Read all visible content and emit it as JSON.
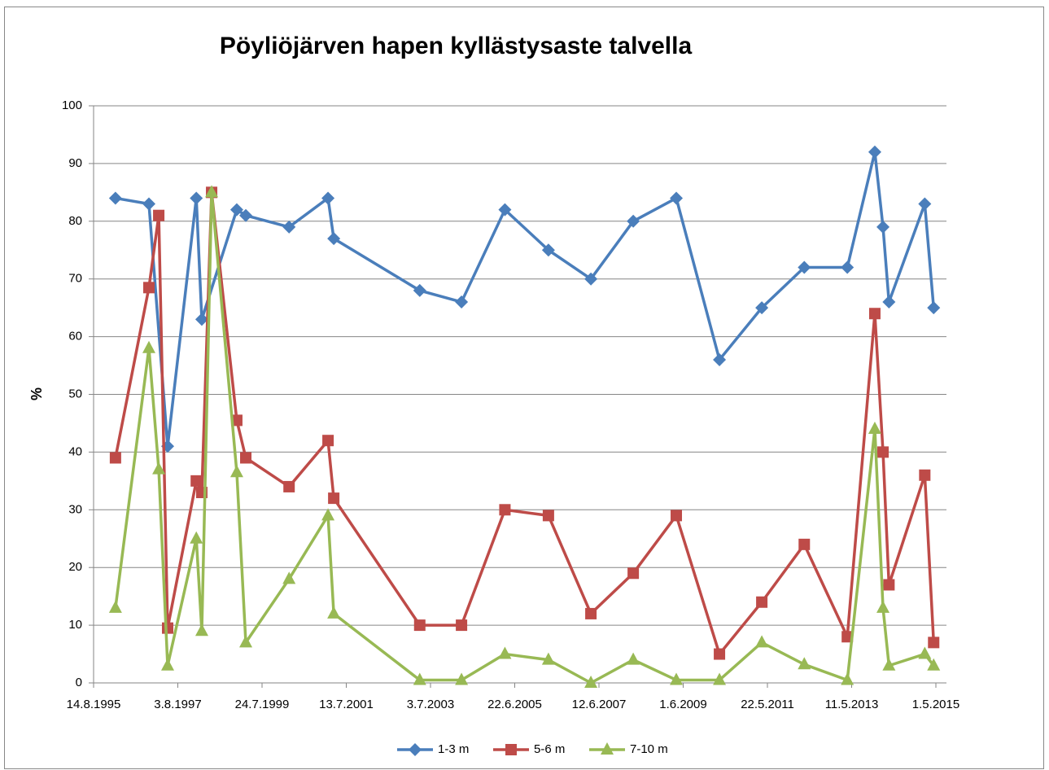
{
  "chart_data": {
    "type": "line",
    "title": "Pöyliöjärven hapen kyllästysaste talvella",
    "y_label": "%",
    "xlim": [
      "1995-08-14",
      "2015-05-01"
    ],
    "xticks": [
      {
        "value": "1995-08-14",
        "label": "14.8.1995"
      },
      {
        "value": "1997-08-03",
        "label": "3.8.1997"
      },
      {
        "value": "1999-07-24",
        "label": "24.7.1999"
      },
      {
        "value": "2001-07-13",
        "label": "13.7.2001"
      },
      {
        "value": "2003-07-03",
        "label": "3.7.2003"
      },
      {
        "value": "2005-06-22",
        "label": "22.6.2005"
      },
      {
        "value": "2007-06-12",
        "label": "12.6.2007"
      },
      {
        "value": "2009-06-01",
        "label": "1.6.2009"
      },
      {
        "value": "2011-05-22",
        "label": "22.5.2011"
      },
      {
        "value": "2013-05-11",
        "label": "11.5.2013"
      },
      {
        "value": "2015-05-01",
        "label": "1.5.2015"
      }
    ],
    "ylim": [
      0,
      100
    ],
    "yticks": [
      0,
      10,
      20,
      30,
      40,
      50,
      60,
      70,
      80,
      90,
      100
    ],
    "grid": true,
    "legend": "bottom",
    "series": [
      {
        "name": "1-3 m",
        "color": "#4a7ebb",
        "marker": "diamond",
        "x": [
          "1996-02-17",
          "1996-11-29",
          "1997-05-08",
          "1998-01-08",
          "1998-02-24",
          "1998-12-20",
          "1999-03-07",
          "2000-03-11",
          "2001-02-07",
          "2001-03-28",
          "2003-04-02",
          "2004-03-24",
          "2005-03-30",
          "2006-04-06",
          "2007-04-04",
          "2008-03-31",
          "2009-04-03",
          "2010-04-07",
          "2011-04-04",
          "2012-04-01",
          "2013-04-04",
          "2013-11-25",
          "2014-02-03",
          "2014-03-26",
          "2015-01-26",
          "2015-04-12"
        ],
        "values": [
          84,
          83,
          41,
          84,
          63,
          82,
          81,
          79,
          84,
          77,
          68,
          66,
          82,
          75,
          70,
          80,
          84,
          56,
          65,
          72,
          72,
          92,
          79,
          66,
          83,
          65
        ]
      },
      {
        "name": "5-6 m",
        "color": "#be4b48",
        "marker": "square",
        "x": [
          "1996-02-17",
          "1996-11-29",
          "1997-02-21",
          "1997-05-08",
          "1998-01-08",
          "1998-02-24",
          "1998-05-19",
          "1998-12-20",
          "1999-03-07",
          "2000-03-11",
          "2001-02-07",
          "2001-03-28",
          "2003-04-02",
          "2004-03-24",
          "2005-03-30",
          "2006-04-06",
          "2007-04-04",
          "2008-03-31",
          "2009-04-03",
          "2010-04-07",
          "2011-04-04",
          "2012-04-01",
          "2013-04-04",
          "2013-11-25",
          "2014-02-03",
          "2014-03-26",
          "2015-01-26",
          "2015-04-12"
        ],
        "values": [
          39,
          68.5,
          81,
          9.5,
          35,
          33,
          85,
          45.5,
          39,
          34,
          42,
          32,
          10,
          10,
          30,
          29,
          12,
          19,
          29,
          5,
          14,
          24,
          8,
          64,
          40,
          17,
          36,
          7
        ]
      },
      {
        "name": "7-10 m",
        "color": "#98b954",
        "marker": "triangle",
        "x": [
          "1996-02-17",
          "1996-11-29",
          "1997-02-21",
          "1997-05-08",
          "1998-01-08",
          "1998-02-24",
          "1998-05-19",
          "1998-12-20",
          "1999-03-07",
          "2000-03-11",
          "2001-02-07",
          "2001-03-28",
          "2003-04-02",
          "2004-03-24",
          "2005-03-30",
          "2006-04-06",
          "2007-04-04",
          "2008-03-31",
          "2009-04-03",
          "2010-04-07",
          "2011-04-04",
          "2012-04-01",
          "2013-04-04",
          "2013-11-25",
          "2014-02-03",
          "2014-03-26",
          "2015-01-26",
          "2015-04-12"
        ],
        "values": [
          13,
          58,
          37,
          3,
          25,
          9,
          85,
          36.5,
          7,
          18,
          29,
          12,
          0.5,
          0.5,
          5,
          4,
          0,
          4,
          0.5,
          0.5,
          7,
          3.2,
          0.5,
          44,
          13,
          3,
          5,
          3
        ]
      }
    ]
  }
}
